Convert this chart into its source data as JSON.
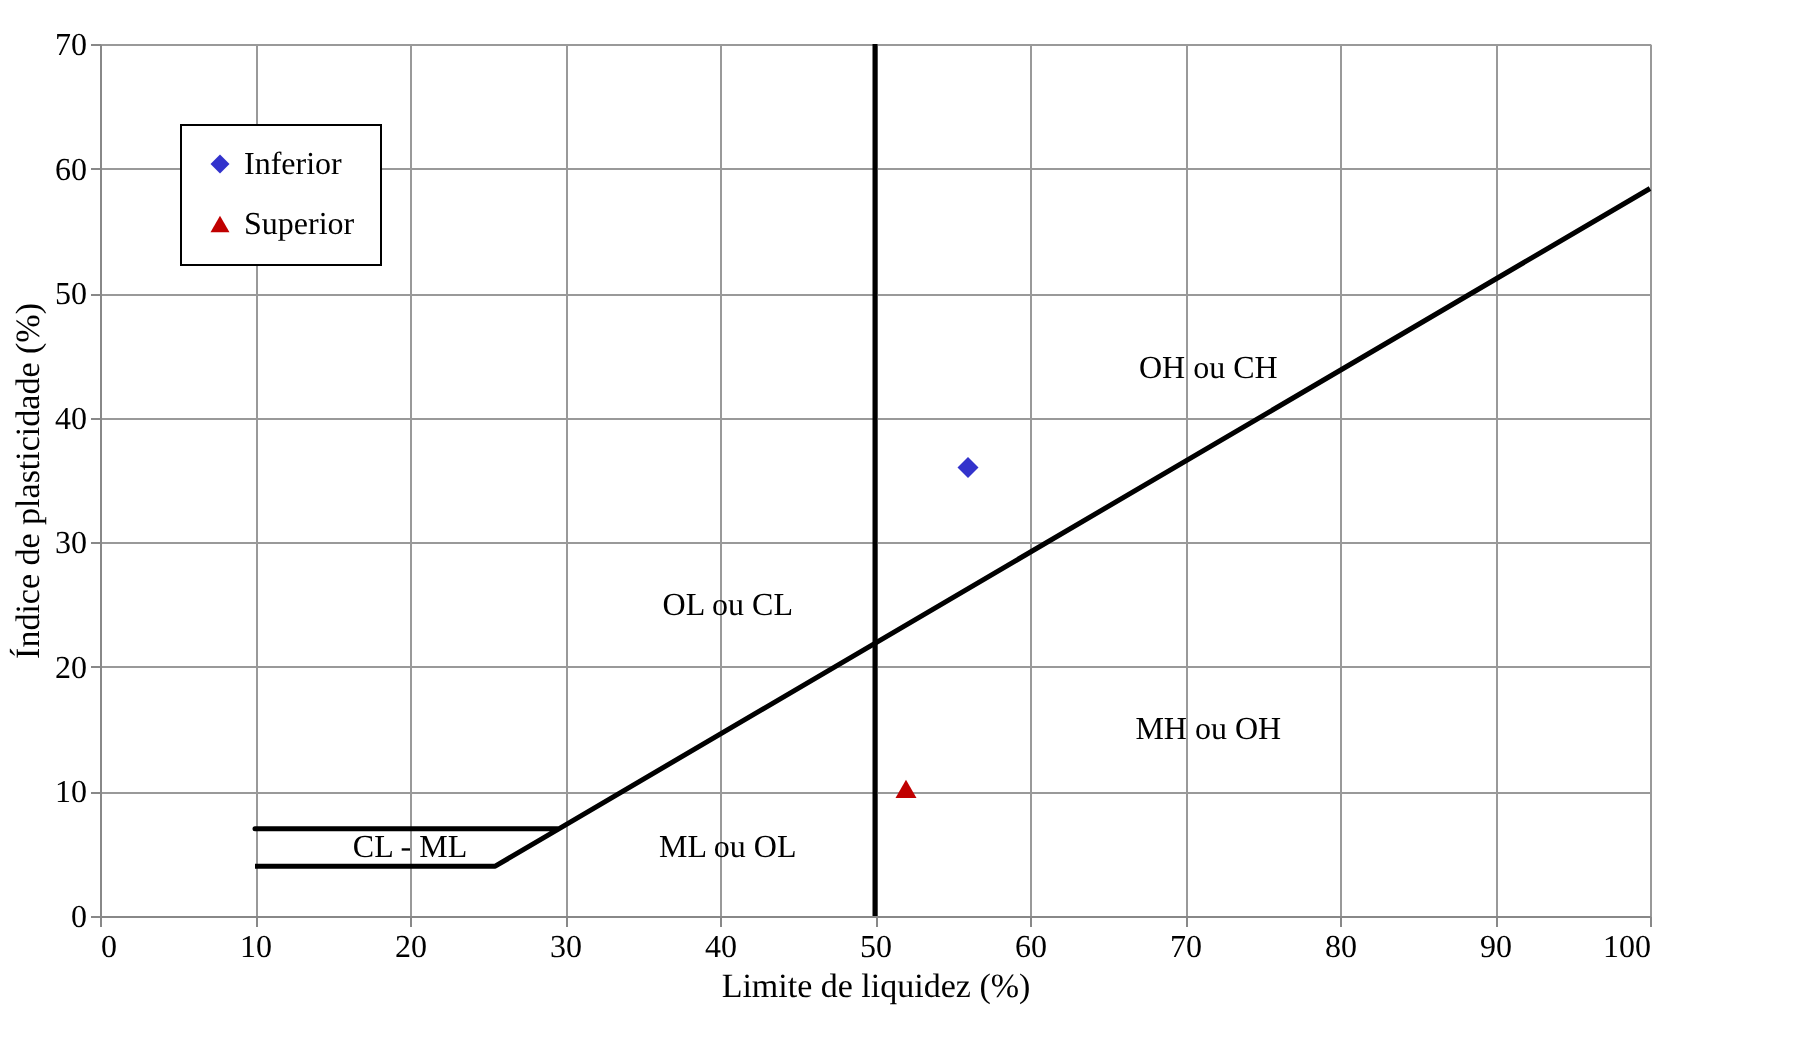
{
  "chart_data": {
    "type": "scatter",
    "xlabel": "Limite  de liquidez  (%)",
    "ylabel": "Índice  de plasticidade  (%)",
    "xlim": [
      0,
      100
    ],
    "xticks": [
      0,
      10,
      20,
      30,
      40,
      50,
      60,
      70,
      80,
      90,
      100
    ],
    "ylim": [
      0,
      70
    ],
    "yticks": [
      0,
      10,
      20,
      30,
      40,
      50,
      60,
      70
    ],
    "grid": true,
    "legend": "top left",
    "series": [
      {
        "name": "Inferior",
        "marker": "diamond",
        "color": "#3333cc",
        "x": [
          56
        ],
        "values": [
          36
        ]
      },
      {
        "name": "Superior",
        "marker": "triangle",
        "color": "#c00000",
        "x": [
          52
        ],
        "values": [
          10.2
        ]
      },
      {
        "type": "line",
        "color": "#000000",
        "marker": "none",
        "x": [
          10,
          25.5,
          29.6,
          10,
          29.6,
          100
        ],
        "values": [
          4,
          4,
          7,
          7,
          7,
          58.4
        ]
      }
    ],
    "ref_lines": [
      {
        "axis": "x",
        "value": 50,
        "color": "#000000"
      }
    ],
    "annotations": [
      "OH  ou CH",
      "OL  ou CL",
      "MH  ou OH",
      "ML  ou OL",
      "CL   -   ML"
    ]
  }
}
